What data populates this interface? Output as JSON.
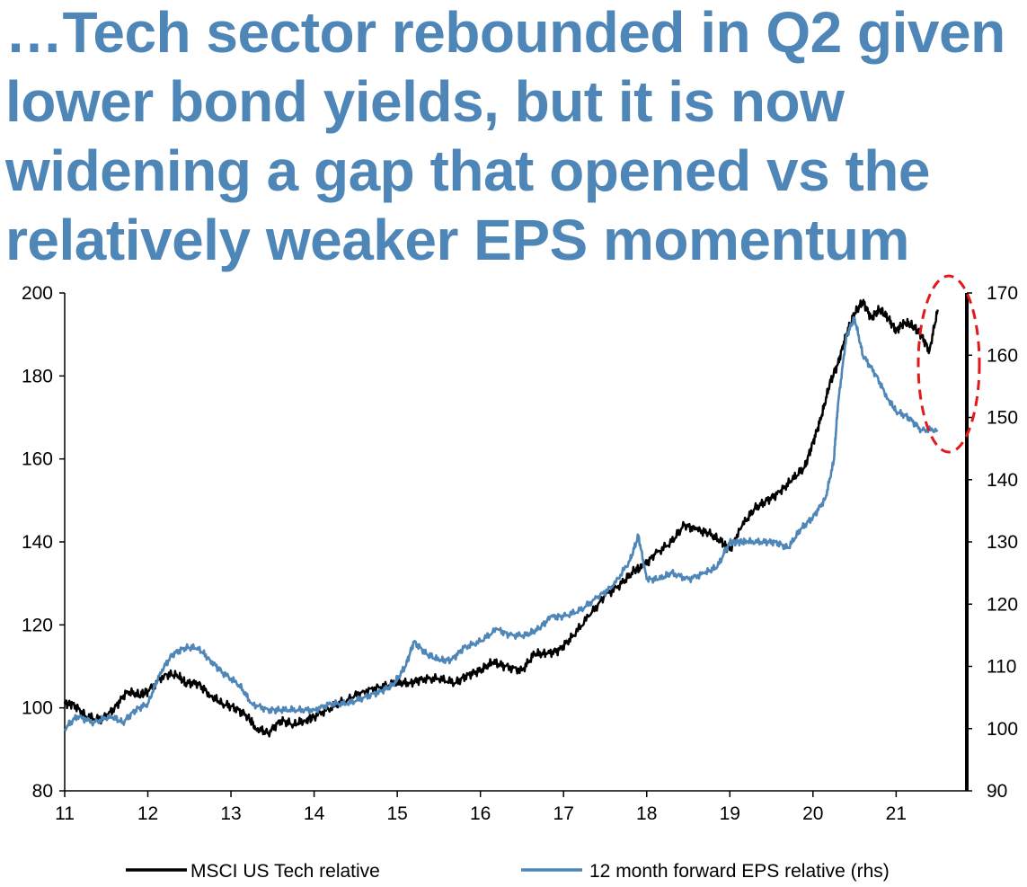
{
  "title": "…Tech sector rebounded in Q2 given lower bond yields, but it is now widening a gap that opened vs the relatively weaker EPS momentum",
  "colors": {
    "title": "#4F86B8",
    "series_black": "#000000",
    "series_blue": "#4F86B8",
    "highlight": "#E0191B"
  },
  "chart_data": {
    "type": "line",
    "title": "…Tech sector rebounded in Q2 given lower bond yields, but it is now widening a gap that opened vs the relatively weaker EPS momentum",
    "x_ticks": [
      "11",
      "12",
      "13",
      "14",
      "15",
      "16",
      "17",
      "18",
      "19",
      "20",
      "21"
    ],
    "x_range": [
      2011,
      2021.85
    ],
    "y_left": {
      "range": [
        80,
        200
      ],
      "ticks": [
        "80",
        "100",
        "120",
        "140",
        "160",
        "180",
        "200"
      ]
    },
    "y_right": {
      "range": [
        90,
        170
      ],
      "ticks": [
        "90",
        "100",
        "110",
        "120",
        "130",
        "140",
        "150",
        "160",
        "170"
      ],
      "label": "rhs"
    },
    "legend_position": "bottom",
    "series": [
      {
        "name": "MSCI US Tech relative",
        "axis": "left",
        "color": "#000000",
        "x": [
          2011.0,
          2011.1,
          2011.25,
          2011.45,
          2011.6,
          2011.75,
          2011.9,
          2012.0,
          2012.2,
          2012.35,
          2012.45,
          2012.6,
          2012.75,
          2012.9,
          2013.05,
          2013.2,
          2013.3,
          2013.45,
          2013.6,
          2013.75,
          2013.9,
          2014.0,
          2014.2,
          2014.4,
          2014.6,
          2014.8,
          2015.0,
          2015.15,
          2015.3,
          2015.5,
          2015.7,
          2015.85,
          2016.0,
          2016.15,
          2016.3,
          2016.5,
          2016.65,
          2016.8,
          2016.95,
          2017.1,
          2017.3,
          2017.5,
          2017.7,
          2017.85,
          2017.95,
          2018.1,
          2018.3,
          2018.45,
          2018.6,
          2018.75,
          2018.9,
          2019.0,
          2019.15,
          2019.3,
          2019.45,
          2019.6,
          2019.75,
          2019.9,
          2020.0,
          2020.1,
          2020.2,
          2020.3,
          2020.4,
          2020.5,
          2020.6,
          2020.7,
          2020.8,
          2020.9,
          2021.0,
          2021.1,
          2021.2,
          2021.3,
          2021.4,
          2021.5
        ],
        "values": [
          101,
          101,
          98,
          97,
          100,
          104,
          103,
          104,
          108,
          108,
          106,
          106,
          103,
          101,
          100,
          98,
          95,
          94,
          97,
          96,
          97,
          98,
          100,
          102,
          104,
          105,
          106,
          106,
          107,
          107,
          106,
          108,
          109,
          111,
          110,
          109,
          113,
          113,
          114,
          117,
          122,
          127,
          130,
          133,
          134,
          137,
          140,
          144,
          143,
          142,
          140,
          138,
          144,
          148,
          150,
          152,
          155,
          158,
          164,
          170,
          178,
          183,
          190,
          195,
          198,
          194,
          196,
          194,
          191,
          193,
          192,
          190,
          186,
          196
        ],
        "last_value": 196
      },
      {
        "name": "12 month forward EPS relative (rhs)",
        "axis": "right",
        "color": "#4F86B8",
        "x": [
          2011.0,
          2011.15,
          2011.35,
          2011.55,
          2011.7,
          2011.85,
          2012.0,
          2012.15,
          2012.3,
          2012.45,
          2012.6,
          2012.75,
          2012.9,
          2013.1,
          2013.25,
          2013.45,
          2013.6,
          2013.8,
          2014.0,
          2014.2,
          2014.4,
          2014.6,
          2014.8,
          2014.95,
          2015.1,
          2015.2,
          2015.35,
          2015.5,
          2015.65,
          2015.8,
          2016.0,
          2016.2,
          2016.35,
          2016.55,
          2016.7,
          2016.85,
          2017.0,
          2017.2,
          2017.4,
          2017.6,
          2017.8,
          2017.9,
          2018.0,
          2018.15,
          2018.3,
          2018.5,
          2018.7,
          2018.85,
          2019.0,
          2019.1,
          2019.2,
          2019.4,
          2019.55,
          2019.7,
          2019.85,
          2020.0,
          2020.15,
          2020.25,
          2020.3,
          2020.4,
          2020.5,
          2020.6,
          2020.75,
          2020.9,
          2021.0,
          2021.15,
          2021.3,
          2021.5
        ],
        "values": [
          100,
          102,
          101,
          102,
          101,
          103,
          104,
          109,
          112,
          113,
          113,
          111,
          109,
          107,
          104,
          103,
          103,
          103,
          103,
          104,
          104,
          105,
          106,
          107,
          110,
          114,
          112,
          111,
          111,
          113,
          114,
          116,
          115,
          115,
          116,
          118,
          118,
          119,
          121,
          123,
          127,
          131,
          124,
          124,
          125,
          124,
          125,
          126,
          130,
          130,
          130,
          130,
          130,
          129,
          132,
          134,
          137,
          143,
          152,
          163,
          166,
          160,
          157,
          153,
          151,
          150,
          148,
          148
        ],
        "last_value": 148
      }
    ]
  },
  "legend": {
    "items": [
      {
        "label": "MSCI US Tech relative",
        "color": "#000000"
      },
      {
        "label": "12 month forward EPS relative (rhs)",
        "color": "#4F86B8"
      }
    ]
  }
}
